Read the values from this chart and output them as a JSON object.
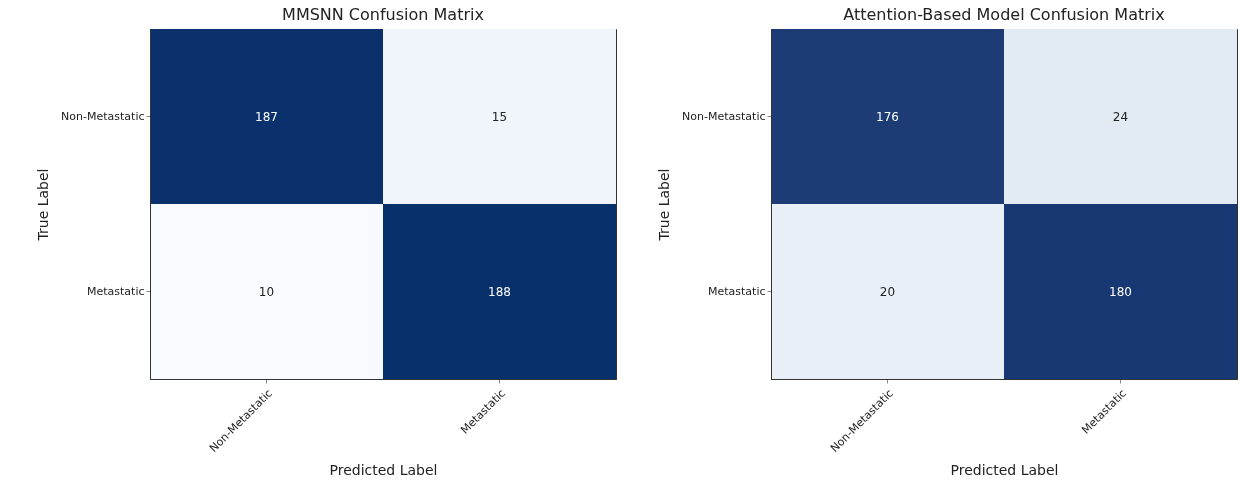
{
  "chart_data": [
    {
      "type": "heatmap",
      "title": "MMSNN Confusion Matrix",
      "xlabel": "Predicted Label",
      "ylabel": "True Label",
      "categories": [
        "Non-Metastatic",
        "Metastatic"
      ],
      "y_categories": [
        "Non-Metastatic",
        "Metastatic"
      ],
      "cells": [
        [
          187,
          15
        ],
        [
          10,
          188
        ]
      ],
      "data_labels": true,
      "grid": false
    },
    {
      "type": "heatmap",
      "title": "Attention-Based Model Confusion Matrix",
      "xlabel": "Predicted Label",
      "ylabel": "True Label",
      "categories": [
        "Non-Metastatic",
        "Metastatic"
      ],
      "y_categories": [
        "Non-Metastatic",
        "Metastatic"
      ],
      "cells": [
        [
          176,
          24
        ],
        [
          20,
          180
        ]
      ],
      "data_labels": true,
      "grid": false
    }
  ]
}
